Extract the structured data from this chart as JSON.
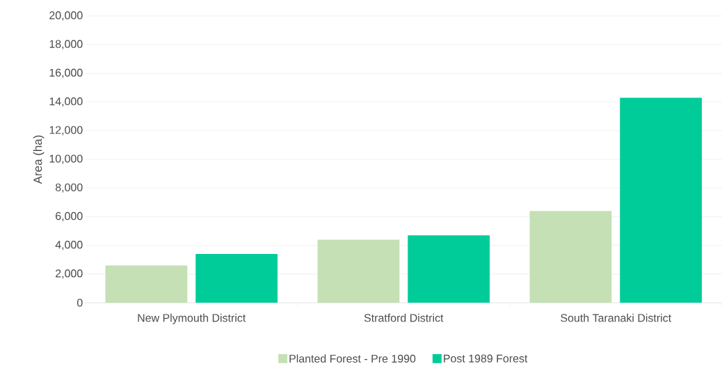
{
  "chart_data": {
    "type": "bar",
    "ylabel": "Area (ha)",
    "categories": [
      "New Plymouth District",
      "Stratford District",
      "South Taranaki District"
    ],
    "series": [
      {
        "name": "Planted Forest - Pre 1990",
        "color": "#c5e0b4",
        "values": [
          2600,
          4400,
          6400
        ]
      },
      {
        "name": "Post 1989 Forest",
        "color": "#00cc99",
        "values": [
          3400,
          4700,
          14300
        ]
      }
    ],
    "ylim": [
      0,
      20000
    ],
    "yticks": [
      {
        "value": 0,
        "label": "0"
      },
      {
        "value": 2000,
        "label": "2,000"
      },
      {
        "value": 4000,
        "label": "4,000"
      },
      {
        "value": 6000,
        "label": "6,000"
      },
      {
        "value": 8000,
        "label": "8,000"
      },
      {
        "value": 10000,
        "label": "10,000"
      },
      {
        "value": 12000,
        "label": "12,000"
      },
      {
        "value": 14000,
        "label": "14,000"
      },
      {
        "value": 16000,
        "label": "16,000"
      },
      {
        "value": 18000,
        "label": "18,000"
      },
      {
        "value": 20000,
        "label": "20,000"
      }
    ],
    "grid": "y",
    "legend": "bottom"
  }
}
